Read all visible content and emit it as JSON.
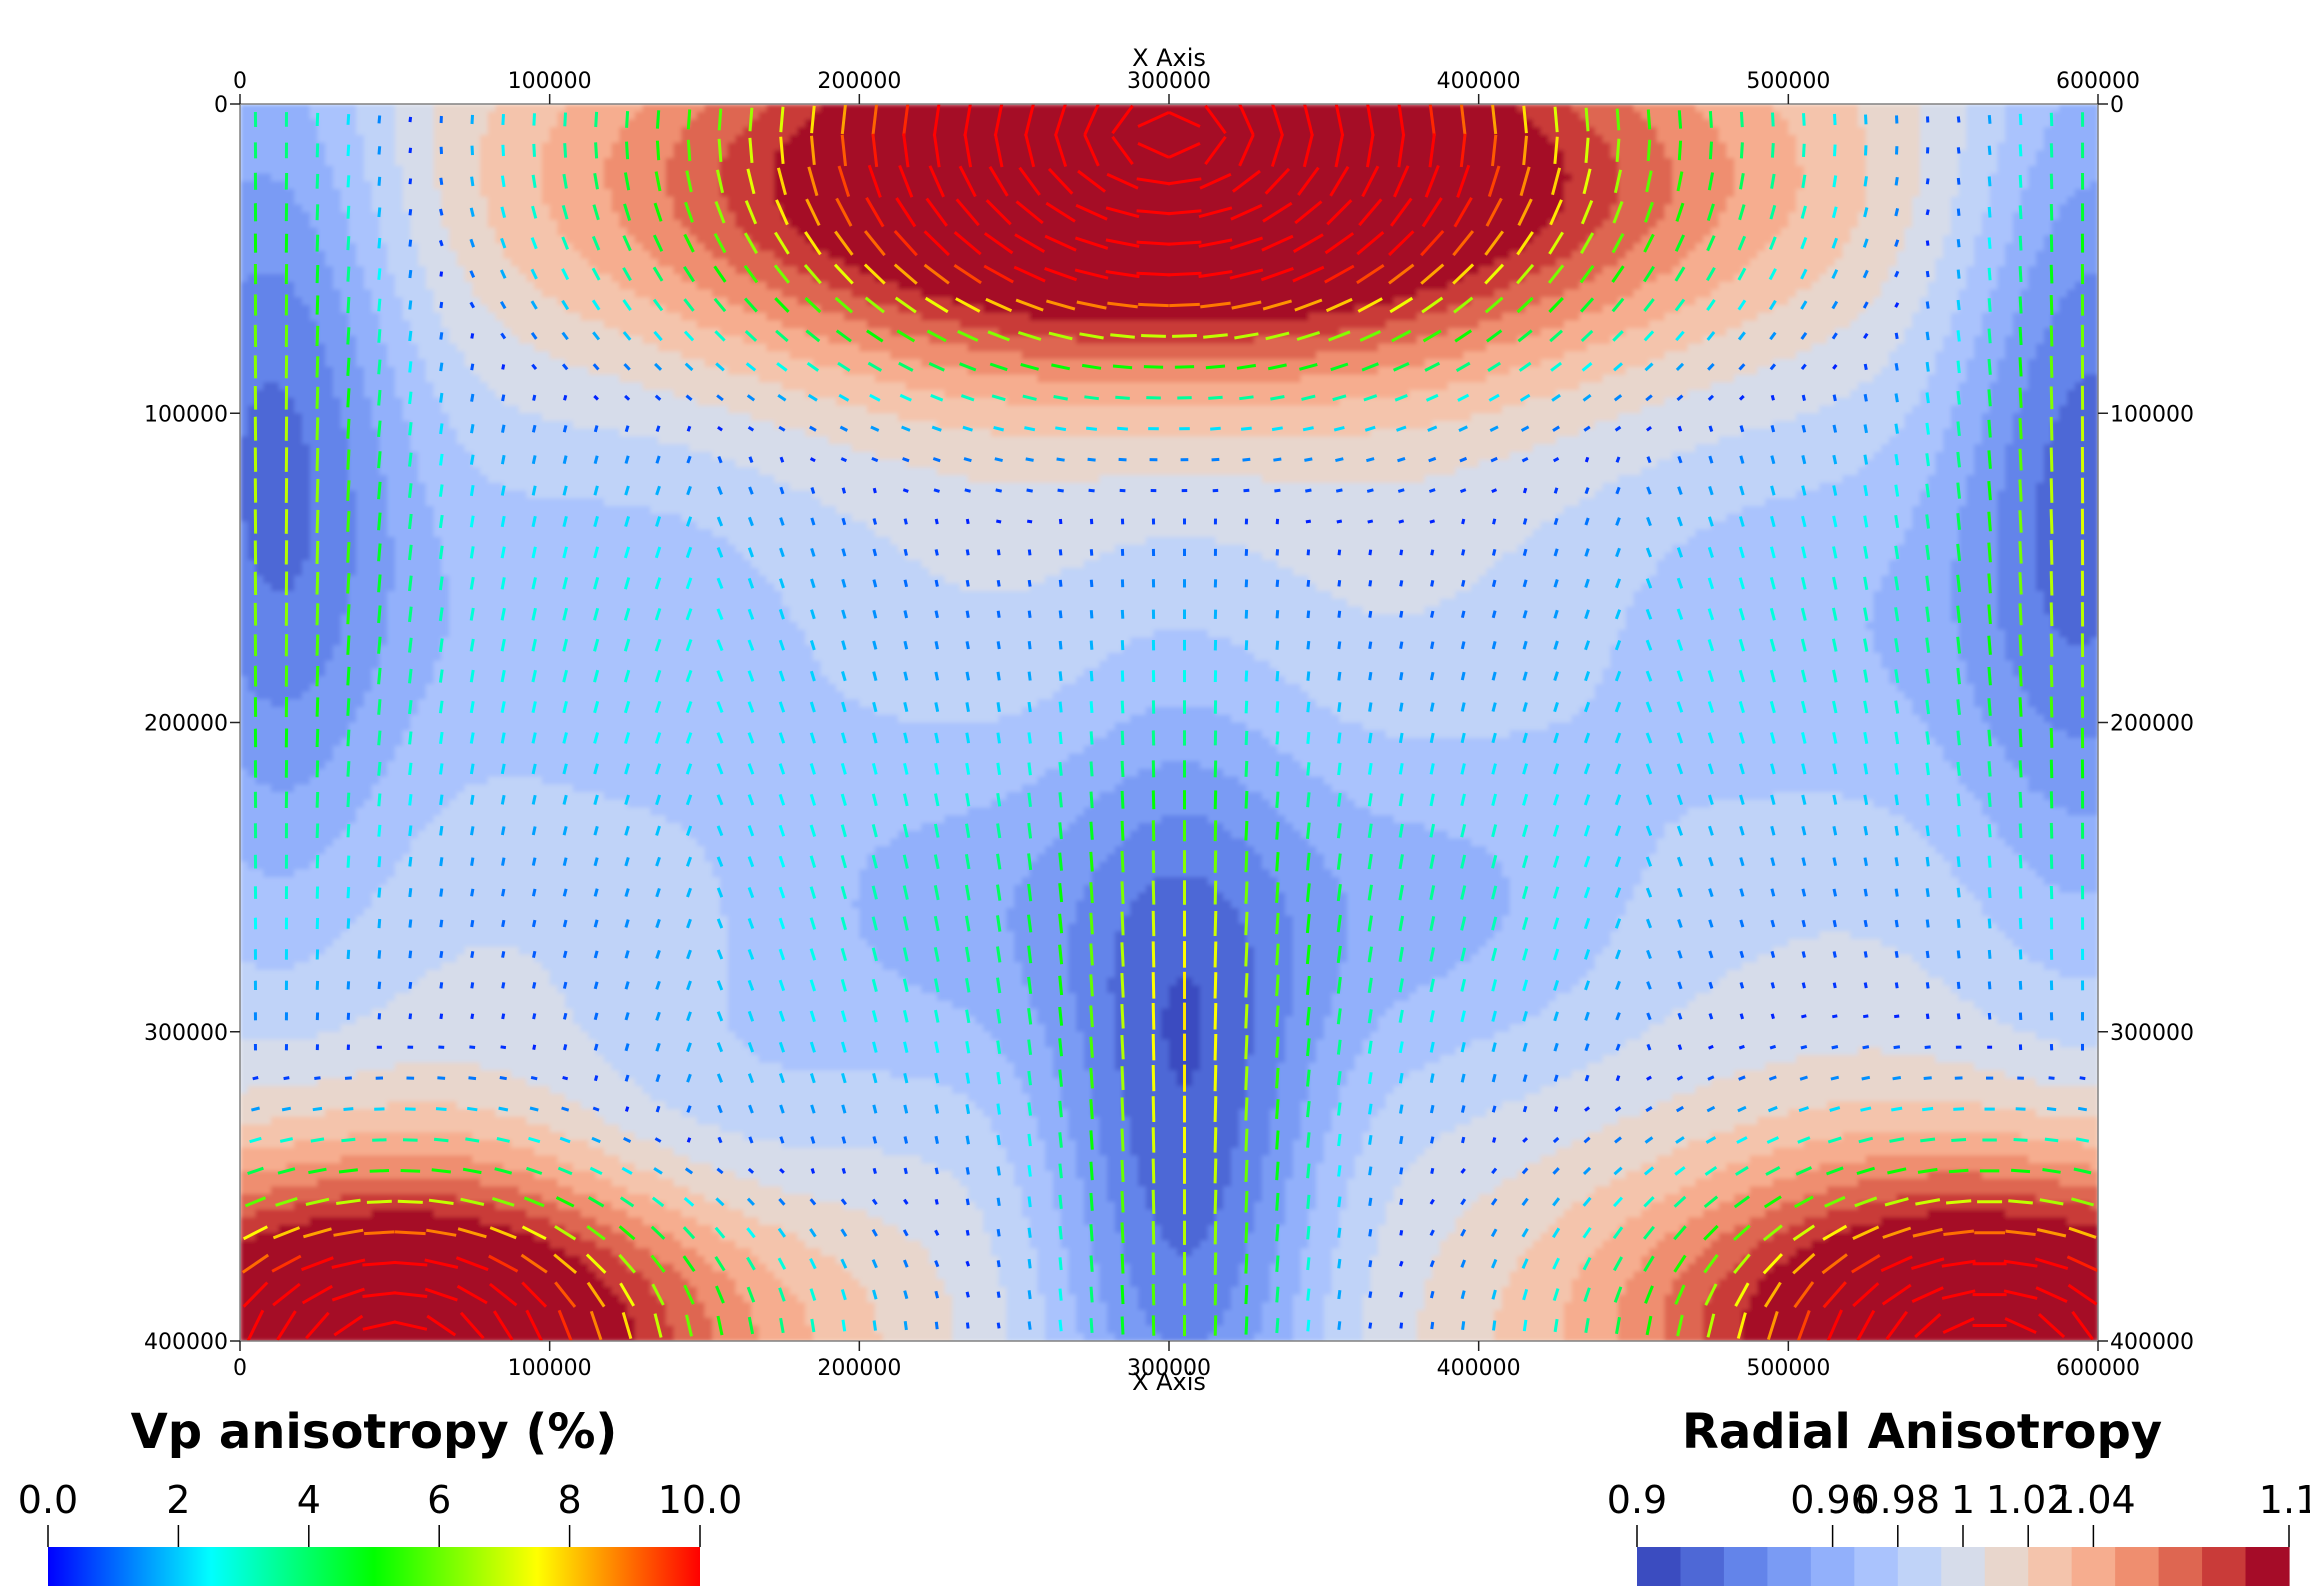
{
  "chart_data": {
    "type": "heatmap",
    "x_axis": {
      "label": "X Axis",
      "range": [
        0,
        600000
      ],
      "ticks": [
        "0",
        "100000",
        "200000",
        "300000",
        "400000",
        "500000",
        "600000"
      ]
    },
    "y_axis": {
      "label": "",
      "range": [
        0,
        400000
      ],
      "inverted": true,
      "ticks": [
        "0",
        "100000",
        "200000",
        "300000",
        "400000"
      ]
    },
    "grid": false,
    "field": {
      "name": "Radial Anisotropy",
      "range": [
        0.9,
        1.1
      ],
      "colormap_bands": [
        "#3b4cc0",
        "#4e68d6",
        "#6384ea",
        "#7a9bf4",
        "#92b0fb",
        "#aac3fd",
        "#c0d3f8",
        "#d6dcea",
        "#e8d6cc",
        "#f4c4ac",
        "#f6ad8f",
        "#ef8e6f",
        "#de6651",
        "#c93b39",
        "#a50c28"
      ],
      "tick_labels": [
        "0.9",
        "0.96",
        "0.98",
        "1",
        "1.02",
        "1.04",
        "1.1"
      ],
      "tick_values": [
        0.9,
        0.96,
        0.98,
        1.0,
        1.02,
        1.04,
        1.1
      ],
      "highs": [
        {
          "x": 300000,
          "y": 25000,
          "note": "large red lobe, top center"
        },
        {
          "x": 60000,
          "y": 390000,
          "note": "red lobe, bottom left"
        },
        {
          "x": 560000,
          "y": 390000,
          "note": "red lobe, bottom right"
        }
      ],
      "lows": [
        {
          "x": 10000,
          "y": 100000,
          "note": "deep blue strip, left edge"
        },
        {
          "x": 595000,
          "y": 110000,
          "note": "deep blue strip, right edge"
        },
        {
          "x": 305000,
          "y": 330000,
          "note": "deep blue plume, bottom center"
        }
      ]
    },
    "glyphs": {
      "name": "Vp anisotropy (%)",
      "range": [
        0.0,
        10.0
      ],
      "tick_labels": [
        "0.0",
        "2",
        "4",
        "6",
        "8",
        "10.0"
      ],
      "tick_values": [
        0,
        2,
        4,
        6,
        8,
        10
      ],
      "colormap": [
        "#0000ff",
        "#00ffff",
        "#00ff00",
        "#ffff00",
        "#ff0000"
      ],
      "grid_spacing": 10000,
      "description": "short line segments showing fast-axis orientation, length scales with anisotropy"
    }
  },
  "legends": {
    "left": {
      "title": "Vp anisotropy (%)",
      "placement": "bottom-left"
    },
    "right": {
      "title": "Radial Anisotropy",
      "placement": "bottom-right"
    }
  }
}
